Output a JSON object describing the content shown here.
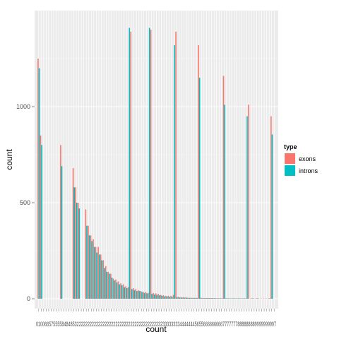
{
  "chart_data": {
    "type": "bar",
    "xlabel": "count",
    "ylabel": "count",
    "ylim": [
      0,
      1430
    ],
    "y_ticks": [
      0,
      500,
      1000
    ],
    "y_tick_labels": [
      "0",
      "500",
      "1000"
    ],
    "x_tick_labels_visible": "0100665755558484853222222222222222222222222222222222222223233333333444444456556666666667777777888888889999999997",
    "grid": true,
    "legend_position": "right",
    "legend": {
      "title": "type",
      "entries": [
        {
          "label": "exons",
          "color": "#F8766D"
        },
        {
          "label": "introns",
          "color": "#00BFC4"
        }
      ]
    },
    "series": [
      {
        "name": "exons",
        "color": "#F8766D",
        "values": [
          1250,
          850,
          0,
          0,
          0,
          0,
          0,
          0,
          0,
          800,
          0,
          0,
          0,
          0,
          680,
          580,
          500,
          0,
          0,
          465,
          380,
          330,
          310,
          270,
          270,
          230,
          200,
          170,
          140,
          130,
          105,
          100,
          90,
          80,
          75,
          65,
          60,
          1390,
          55,
          50,
          45,
          40,
          35,
          35,
          30,
          1400,
          30,
          28,
          25,
          20,
          18,
          15,
          15,
          15,
          20,
          1390,
          10,
          8,
          8,
          8,
          5,
          5,
          5,
          5,
          1320,
          5,
          4,
          4,
          4,
          4,
          3,
          3,
          3,
          3,
          1160,
          3,
          2,
          2,
          2,
          2,
          2,
          2,
          2,
          2,
          1010,
          2,
          2,
          2,
          2,
          2,
          2,
          2,
          2,
          950,
          0
        ]
      },
      {
        "name": "introns",
        "color": "#00BFC4",
        "values": [
          1200,
          800,
          0,
          0,
          0,
          0,
          0,
          0,
          0,
          690,
          0,
          0,
          0,
          0,
          580,
          500,
          470,
          0,
          0,
          380,
          330,
          300,
          270,
          240,
          230,
          200,
          160,
          140,
          130,
          110,
          95,
          85,
          75,
          70,
          60,
          55,
          1410,
          50,
          45,
          40,
          40,
          35,
          30,
          28,
          1410,
          25,
          22,
          20,
          18,
          15,
          12,
          12,
          10,
          10,
          1320,
          8,
          6,
          6,
          5,
          5,
          4,
          4,
          4,
          4,
          1150,
          3,
          3,
          3,
          3,
          3,
          3,
          2,
          2,
          2,
          1010,
          2,
          2,
          2,
          2,
          2,
          2,
          2,
          2,
          950,
          0,
          2,
          0,
          2,
          0,
          0,
          0,
          0,
          2,
          855
        ]
      }
    ]
  }
}
